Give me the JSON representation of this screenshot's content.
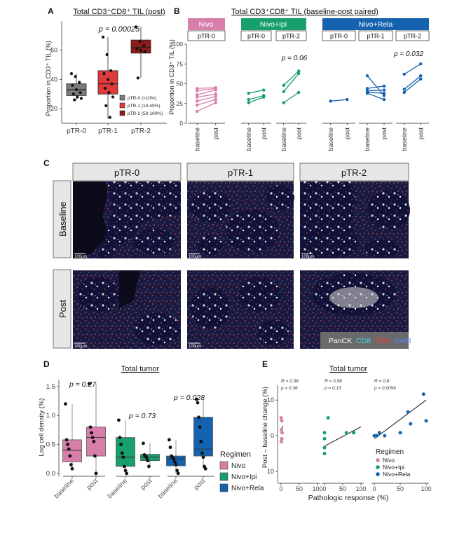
{
  "colors": {
    "nivo": "#d77fa8",
    "nivo_ipi": "#179f6c",
    "nivo_rela": "#1563b0",
    "ptr0": "#7b7b7b",
    "ptr1": "#e03a3a",
    "ptr2": "#8e1b1b",
    "strip_fill": "#e6e6e6",
    "tile_dark": "#0d0d30"
  },
  "panel_a": {
    "letter": "A",
    "title": "Total CD3⁺CD8⁺ TIL (post)",
    "pvalue": "p = 0.00025",
    "ylabel": "Proportion in CD3⁺ TIL (%)",
    "legend": [
      "pTR-0 (<10%)",
      "pTR-1 (10-49%)",
      "pTR-2 (50-100%)"
    ],
    "chart_data": {
      "type": "box",
      "categories": [
        "pTR-0",
        "pTR-1",
        "pTR-2"
      ],
      "ylim": [
        10,
        80
      ],
      "yticks": [
        20,
        40,
        60
      ],
      "boxes": [
        {
          "q1": 29,
          "median": 33,
          "q3": 37,
          "min": 26,
          "max": 44
        },
        {
          "q1": 30,
          "median": 37,
          "q3": 46,
          "min": 13,
          "max": 69
        },
        {
          "q1": 58,
          "median": 62,
          "q3": 67,
          "min": 41,
          "max": 76
        }
      ],
      "points": [
        [
          44,
          42,
          38,
          36,
          33,
          31,
          30,
          28,
          27,
          26
        ],
        [
          69,
          57,
          46,
          44,
          40,
          37,
          34,
          31,
          28,
          22,
          14
        ],
        [
          76,
          66,
          63,
          61,
          60,
          59,
          41
        ]
      ]
    }
  },
  "panel_b": {
    "letter": "B",
    "title": "Total CD3⁺CD8⁺ TIL (baseline-post paired)",
    "ylabel": "Proportion in CD3⁺ TIL (%)",
    "strips": [
      "Nivo",
      "Nivo+Ipi",
      "Nivo+Rela"
    ],
    "subgroups": [
      "pTR-0",
      "pTR-0",
      "pTR-2",
      "pTR-0",
      "pTR-1",
      "pTR-2"
    ],
    "xcats": [
      "baseline",
      "post"
    ],
    "pvalues": [
      "p = 0.06",
      "p = 0.032"
    ],
    "chart_data": {
      "type": "line",
      "ylim": [
        0,
        100
      ],
      "yticks": [
        0,
        25,
        50,
        75,
        100
      ],
      "facets": [
        {
          "group": "Nivo",
          "sub": "pTR-0",
          "pairs": [
            [
              44,
              45
            ],
            [
              41,
              44
            ],
            [
              36,
              42
            ],
            [
              33,
              37
            ],
            [
              28,
              34
            ],
            [
              23,
              30
            ],
            [
              15,
              26
            ]
          ]
        },
        {
          "group": "Nivo+Ipi",
          "sub": "pTR-0",
          "pairs": [
            [
              38,
              42
            ],
            [
              30,
              35
            ],
            [
              26,
              33
            ]
          ]
        },
        {
          "group": "Nivo+Ipi",
          "sub": "pTR-2",
          "pairs": [
            [
              48,
              66
            ],
            [
              40,
              63
            ],
            [
              26,
              39
            ]
          ]
        },
        {
          "group": "Nivo+Rela",
          "sub": "pTR-0",
          "pairs": [
            [
              28,
              30
            ]
          ]
        },
        {
          "group": "Nivo+Rela",
          "sub": "pTR-1",
          "pairs": [
            [
              60,
              35
            ],
            [
              44,
              47
            ],
            [
              41,
              42
            ],
            [
              39,
              38
            ],
            [
              38,
              30
            ]
          ]
        },
        {
          "group": "Nivo+Rela",
          "sub": "pTR-2",
          "pairs": [
            [
              62,
              75
            ],
            [
              43,
              60
            ],
            [
              39,
              56
            ]
          ]
        }
      ]
    }
  },
  "panel_c": {
    "letter": "C",
    "columns": [
      "pTR-0",
      "pTR-1",
      "pTR-2"
    ],
    "rows": [
      "Baseline",
      "Post"
    ],
    "scalebar": "100µm",
    "legend": [
      "PanCK",
      "CD8",
      "CD3",
      "DAPI"
    ]
  },
  "panel_d": {
    "letter": "D",
    "title": "Total tumor",
    "ylabel": "Log cell density (%)",
    "pvalues": [
      "p = 0.27",
      "p = 0.73",
      "p = 0.028"
    ],
    "xcats": [
      "baseline",
      "post",
      "baseline",
      "post",
      "baseline",
      "post"
    ],
    "legend_title": "Regimen",
    "legend": [
      "Nivo",
      "Nivo+Ipi",
      "Nivo+Rela"
    ],
    "chart_data": {
      "type": "box",
      "ylim": [
        -0.05,
        1.62
      ],
      "yticks": [
        0.0,
        0.5,
        1.0,
        1.5
      ],
      "boxes": [
        {
          "q1": 0.2,
          "median": 0.4,
          "q3": 0.58,
          "min": 0.08,
          "max": 1.2
        },
        {
          "q1": 0.3,
          "median": 0.62,
          "q3": 0.8,
          "min": 0.0,
          "max": 1.55
        },
        {
          "q1": 0.12,
          "median": 0.28,
          "q3": 0.62,
          "min": 0.0,
          "max": 0.92
        },
        {
          "q1": 0.22,
          "median": 0.28,
          "q3": 0.33,
          "min": 0.12,
          "max": 0.52
        },
        {
          "q1": 0.13,
          "median": 0.25,
          "q3": 0.3,
          "min": 0.0,
          "max": 0.58
        },
        {
          "q1": 0.3,
          "median": 0.42,
          "q3": 0.97,
          "min": 0.08,
          "max": 1.28
        }
      ],
      "points": [
        [
          1.2,
          0.58,
          0.5,
          0.42,
          0.3,
          0.15,
          0.08
        ],
        [
          1.55,
          0.8,
          0.7,
          0.62,
          0.55,
          0.3,
          0.0
        ],
        [
          0.92,
          0.62,
          0.5,
          0.35,
          0.28,
          0.12,
          0.05,
          0.0
        ],
        [
          0.52,
          0.32,
          0.3,
          0.27,
          0.22,
          0.12
        ],
        [
          0.58,
          0.45,
          0.3,
          0.27,
          0.25,
          0.2,
          0.15,
          0.05,
          0.0
        ],
        [
          1.28,
          1.22,
          0.97,
          0.8,
          0.55,
          0.35,
          0.28,
          0.12,
          0.08
        ]
      ]
    }
  },
  "panel_e": {
    "letter": "E",
    "title": "Total tumor",
    "xlabel": "Pathologic response (%)",
    "ylabel": "Post – baseline change (%)",
    "facet_xticks": [
      [
        "0",
        "50",
        "100"
      ],
      [
        "0",
        "50",
        "100"
      ],
      [
        "0",
        "50",
        "100"
      ]
    ],
    "yticks": [
      "10",
      "0",
      "10"
    ],
    "stats": [
      {
        "r": "R = 0.38",
        "p": "p = 0.36"
      },
      {
        "r": "R = 0.58",
        "p": "p = 0.13"
      },
      {
        "r": "R = 0.8",
        "p": "p = 0.0054"
      }
    ],
    "legend_title": "Regimen",
    "legend": [
      "Nivo",
      "Nivo+Ipi",
      "Nivo+Rela"
    ],
    "chart_data": {
      "type": "scatter",
      "ylim": [
        -16,
        17
      ],
      "facets": [
        {
          "group": "Nivo",
          "points": [
            [
              0,
              6
            ],
            [
              2,
              5
            ],
            [
              1,
              2
            ],
            [
              3,
              1
            ],
            [
              2,
              -1
            ],
            [
              1,
              -2
            ]
          ],
          "fit": [
            [
              0,
              2.0
            ],
            [
              5,
              3.3
            ]
          ]
        },
        {
          "group": "Nivo+Ipi",
          "points": [
            [
              0,
              1
            ],
            [
              0,
              -1
            ],
            [
              0,
              -4
            ],
            [
              0,
              -6
            ],
            [
              10,
              6
            ],
            [
              80,
              1
            ],
            [
              60,
              1
            ]
          ],
          "fit": [
            [
              0,
              -3.5
            ],
            [
              100,
              3.0
            ]
          ]
        },
        {
          "group": "Nivo+Rela",
          "points": [
            [
              0,
              0
            ],
            [
              5,
              0
            ],
            [
              20,
              0
            ],
            [
              10,
              1
            ],
            [
              50,
              1
            ],
            [
              70,
              4
            ],
            [
              100,
              5
            ],
            [
              65,
              8
            ],
            [
              95,
              14
            ]
          ],
          "fit": [
            [
              0,
              -1
            ],
            [
              100,
              12
            ]
          ]
        }
      ]
    }
  }
}
